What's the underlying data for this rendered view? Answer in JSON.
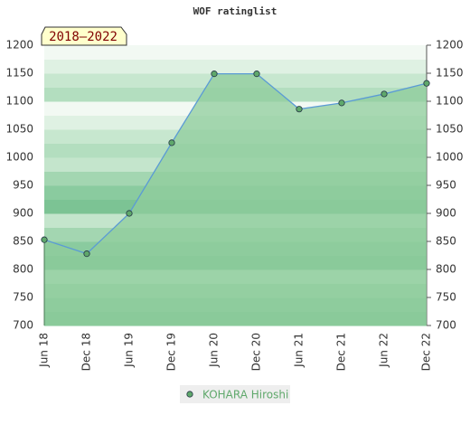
{
  "chart_data": {
    "type": "area",
    "title": "WOF ratinglist",
    "annotation": "2018–2022",
    "categories": [
      "Jun 18",
      "Dec 18",
      "Jun 19",
      "Dec 19",
      "Jun 20",
      "Dec 20",
      "Jun 21",
      "Dec 21",
      "Jun 22",
      "Dec 22"
    ],
    "series": [
      {
        "name": "KOHARA Hiroshi",
        "color": "#5fa86b",
        "line_color": "#5b9bd5",
        "fill_color": "#8fcc9c",
        "values": [
          853,
          828,
          900,
          1026,
          1149,
          1149,
          1086,
          1097,
          1113,
          1132
        ]
      }
    ],
    "ylim": [
      700,
      1200
    ],
    "yticks": [
      700,
      750,
      800,
      850,
      900,
      950,
      1000,
      1050,
      1100,
      1150,
      1200
    ]
  }
}
